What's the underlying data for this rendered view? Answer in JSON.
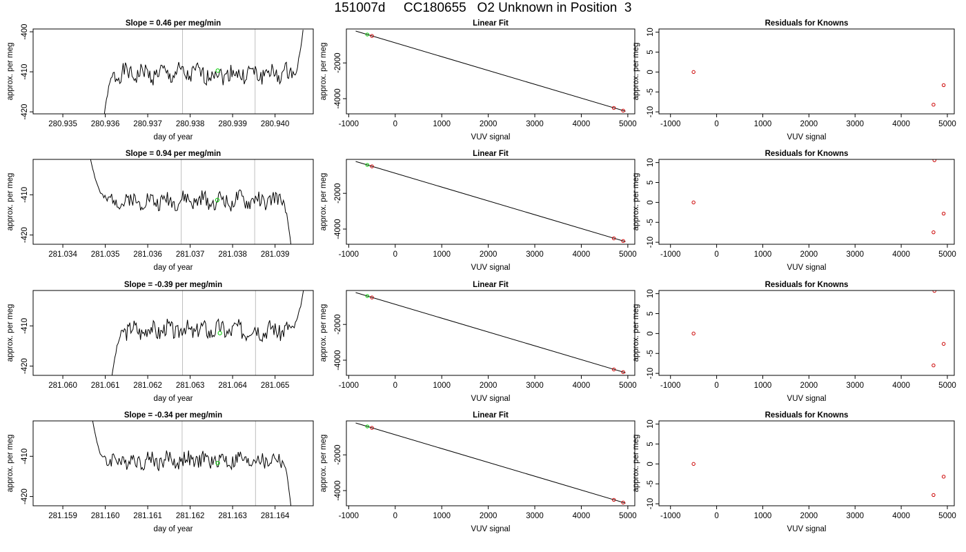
{
  "page": {
    "title": "151007d     CC180655   O2 Unknown in Position  3"
  },
  "colors": {
    "trace": "#000000",
    "marker_green": "#00cc00",
    "marker_red": "#cc0000",
    "vline": "#bebebe",
    "frame": "#000000"
  },
  "chart_data": [
    {
      "type": "line",
      "row": 1,
      "col": 1,
      "title": "Slope =  0.46  per meg/min",
      "xlabel": "day of year",
      "ylabel": "approx. per meg",
      "xlim": [
        280.9343,
        280.9409
      ],
      "ylim": [
        -420.5,
        -399.3
      ],
      "xticks": [
        280.935,
        280.936,
        280.937,
        280.938,
        280.939,
        280.94
      ],
      "xtick_labels": [
        "280.935",
        "280.936",
        "280.937",
        "280.938",
        "280.939",
        "280.940"
      ],
      "yticks": [
        -420,
        -410,
        -400
      ],
      "ytick_labels": [
        "-420",
        "-410",
        "-400"
      ],
      "vlines": [
        280.93782,
        280.93953
      ],
      "trace": {
        "x_start": 280.93595,
        "x_end": 280.94066,
        "y_start": -423,
        "y_end": -399.5,
        "base": -410.5,
        "ramp_frac": 0.06,
        "end_frac": 0.95,
        "amp": 2.6,
        "seed": 1
      },
      "marker": {
        "x": 280.93865,
        "y": -409.7
      }
    },
    {
      "type": "scatter",
      "row": 1,
      "col": 2,
      "title": "Linear Fit",
      "xlabel": "VUV signal",
      "ylabel": "approx. per meg",
      "xlim": [
        -1050,
        5150
      ],
      "ylim": [
        -4850,
        -100
      ],
      "xticks": [
        -1000,
        0,
        1000,
        2000,
        3000,
        4000,
        5000
      ],
      "xtick_labels": [
        "-1000",
        "0",
        "1000",
        "2000",
        "3000",
        "4000",
        "5000"
      ],
      "yticks": [
        -4000,
        -2000
      ],
      "ytick_labels": [
        "-4000",
        "-2000"
      ],
      "fit_line": {
        "x": [
          -850,
          4950
        ],
        "y": [
          -217,
          -4705
        ]
      },
      "points_red": [
        {
          "x": -500,
          "y": -491
        },
        {
          "x": 4700,
          "y": -4520
        },
        {
          "x": 4900,
          "y": -4670
        }
      ],
      "points_green": [
        {
          "x": -600,
          "y": -410
        }
      ]
    },
    {
      "type": "scatter",
      "row": 1,
      "col": 3,
      "title": "Residuals for Knowns",
      "xlabel": "VUV signal",
      "ylabel": "approx. per meg",
      "xlim": [
        -1250,
        5150
      ],
      "ylim": [
        -10.5,
        10.8
      ],
      "xticks": [
        -1000,
        0,
        1000,
        2000,
        3000,
        4000,
        5000
      ],
      "xtick_labels": [
        "-1000",
        "0",
        "1000",
        "2000",
        "3000",
        "4000",
        "5000"
      ],
      "yticks": [
        -10,
        -5,
        0,
        5,
        10
      ],
      "ytick_labels": [
        "-10",
        "-5",
        "0",
        "5",
        "10"
      ],
      "points_red": [
        {
          "x": -500,
          "y": 0
        },
        {
          "x": 4700,
          "y": -8.2
        },
        {
          "x": 4920,
          "y": -3.3
        }
      ]
    },
    {
      "type": "line",
      "row": 2,
      "col": 1,
      "title": "Slope =  0.94  per meg/min",
      "xlabel": "day of year",
      "ylabel": "approx. per meg",
      "xlim": [
        281.0333,
        281.0399
      ],
      "ylim": [
        -422.3,
        -401.2
      ],
      "xticks": [
        281.034,
        281.035,
        281.036,
        281.037,
        281.038,
        281.039
      ],
      "xtick_labels": [
        "281.034",
        "281.035",
        "281.036",
        "281.037",
        "281.038",
        "281.039"
      ],
      "yticks": [
        -420,
        -410
      ],
      "ytick_labels": [
        "-420",
        "-410"
      ],
      "vlines": [
        281.03679,
        281.03852
      ],
      "trace": {
        "x_start": 281.03465,
        "x_end": 281.03938,
        "y_start": -401,
        "y_end": -423,
        "base": -411.5,
        "ramp_frac": 0.09,
        "end_frac": 0.95,
        "amp": 2.4,
        "seed": 2
      },
      "marker": {
        "x": 281.03764,
        "y": -411.3
      }
    },
    {
      "type": "scatter",
      "row": 2,
      "col": 2,
      "title": "Linear Fit",
      "xlabel": "VUV signal",
      "ylabel": "approx. per meg",
      "xlim": [
        -1050,
        5150
      ],
      "ylim": [
        -4850,
        -100
      ],
      "xticks": [
        -1000,
        0,
        1000,
        2000,
        3000,
        4000,
        5000
      ],
      "xtick_labels": [
        "-1000",
        "0",
        "1000",
        "2000",
        "3000",
        "4000",
        "5000"
      ],
      "yticks": [
        -4000,
        -2000
      ],
      "ytick_labels": [
        "-4000",
        "-2000"
      ],
      "fit_line": {
        "x": [
          -850,
          4950
        ],
        "y": [
          -217,
          -4705
        ]
      },
      "points_red": [
        {
          "x": -500,
          "y": -491
        },
        {
          "x": 4700,
          "y": -4520
        },
        {
          "x": 4900,
          "y": -4670
        }
      ],
      "points_green": [
        {
          "x": -600,
          "y": -410
        }
      ]
    },
    {
      "type": "scatter",
      "row": 2,
      "col": 3,
      "title": "Residuals for Knowns",
      "xlabel": "VUV signal",
      "ylabel": "approx. per meg",
      "xlim": [
        -1250,
        5150
      ],
      "ylim": [
        -10.5,
        10.8
      ],
      "xticks": [
        -1000,
        0,
        1000,
        2000,
        3000,
        4000,
        5000
      ],
      "xtick_labels": [
        "-1000",
        "0",
        "1000",
        "2000",
        "3000",
        "4000",
        "5000"
      ],
      "yticks": [
        -10,
        -5,
        0,
        5,
        10
      ],
      "ytick_labels": [
        "-10",
        "-5",
        "0",
        "5",
        "10"
      ],
      "points_red": [
        {
          "x": -500,
          "y": 0
        },
        {
          "x": 4700,
          "y": -7.5
        },
        {
          "x": 4720,
          "y": 10.6
        },
        {
          "x": 4920,
          "y": -2.8
        }
      ]
    },
    {
      "type": "line",
      "row": 3,
      "col": 1,
      "title": "Slope =  -0.39  per meg/min",
      "xlabel": "day of year",
      "ylabel": "approx. per meg",
      "xlim": [
        281.0593,
        281.0659
      ],
      "ylim": [
        -422.3,
        -401.2
      ],
      "xticks": [
        281.06,
        281.061,
        281.062,
        281.063,
        281.064,
        281.065
      ],
      "xtick_labels": [
        "281.060",
        "281.061",
        "281.062",
        "281.063",
        "281.064",
        "281.065"
      ],
      "yticks": [
        -420,
        -410
      ],
      "ytick_labels": [
        "-420",
        "-410"
      ],
      "vlines": [
        281.06282,
        281.06454
      ],
      "trace": {
        "x_start": 281.06115,
        "x_end": 281.06568,
        "y_start": -423,
        "y_end": -400.5,
        "base": -411,
        "ramp_frac": 0.07,
        "end_frac": 0.93,
        "amp": 2.6,
        "seed": 3
      },
      "marker": {
        "x": 281.0637,
        "y": -411.8
      }
    },
    {
      "type": "scatter",
      "row": 3,
      "col": 2,
      "title": "Linear Fit",
      "xlabel": "VUV signal",
      "ylabel": "approx. per meg",
      "xlim": [
        -1050,
        5150
      ],
      "ylim": [
        -4850,
        -100
      ],
      "xticks": [
        -1000,
        0,
        1000,
        2000,
        3000,
        4000,
        5000
      ],
      "xtick_labels": [
        "-1000",
        "0",
        "1000",
        "2000",
        "3000",
        "4000",
        "5000"
      ],
      "yticks": [
        -4000,
        -2000
      ],
      "ytick_labels": [
        "-4000",
        "-2000"
      ],
      "fit_line": {
        "x": [
          -850,
          4950
        ],
        "y": [
          -217,
          -4705
        ]
      },
      "points_red": [
        {
          "x": -500,
          "y": -491
        },
        {
          "x": 4700,
          "y": -4520
        },
        {
          "x": 4900,
          "y": -4670
        }
      ],
      "points_green": [
        {
          "x": -600,
          "y": -410
        }
      ]
    },
    {
      "type": "scatter",
      "row": 3,
      "col": 3,
      "title": "Residuals for Knowns",
      "xlabel": "VUV signal",
      "ylabel": "approx. per meg",
      "xlim": [
        -1250,
        5150
      ],
      "ylim": [
        -10.5,
        10.8
      ],
      "xticks": [
        -1000,
        0,
        1000,
        2000,
        3000,
        4000,
        5000
      ],
      "xtick_labels": [
        "-1000",
        "0",
        "1000",
        "2000",
        "3000",
        "4000",
        "5000"
      ],
      "yticks": [
        -10,
        -5,
        0,
        5,
        10
      ],
      "ytick_labels": [
        "-10",
        "-5",
        "0",
        "5",
        "10"
      ],
      "points_red": [
        {
          "x": -500,
          "y": 0
        },
        {
          "x": 4700,
          "y": -8.0
        },
        {
          "x": 4720,
          "y": 10.7
        },
        {
          "x": 4920,
          "y": -2.6
        }
      ]
    },
    {
      "type": "line",
      "row": 4,
      "col": 1,
      "title": "Slope =  -0.34  per meg/min",
      "xlabel": "day of year",
      "ylabel": "approx. per meg",
      "xlim": [
        281.1583,
        281.1649
      ],
      "ylim": [
        -422.3,
        -401.2
      ],
      "xticks": [
        281.159,
        281.16,
        281.161,
        281.162,
        281.163,
        281.164
      ],
      "xtick_labels": [
        "281.159",
        "281.160",
        "281.161",
        "281.162",
        "281.163",
        "281.164"
      ],
      "yticks": [
        -420,
        -410
      ],
      "ytick_labels": [
        "-420",
        "-410"
      ],
      "vlines": [
        281.16181,
        281.16354
      ],
      "trace": {
        "x_start": 281.1597,
        "x_end": 281.16438,
        "y_start": -401,
        "y_end": -423,
        "base": -411,
        "ramp_frac": 0.07,
        "end_frac": 0.95,
        "amp": 2.4,
        "seed": 4
      },
      "marker": {
        "x": 281.16265,
        "y": -411.7
      }
    },
    {
      "type": "scatter",
      "row": 4,
      "col": 2,
      "title": "Linear Fit",
      "xlabel": "VUV signal",
      "ylabel": "approx. per meg",
      "xlim": [
        -1050,
        5150
      ],
      "ylim": [
        -4850,
        -100
      ],
      "xticks": [
        -1000,
        0,
        1000,
        2000,
        3000,
        4000,
        5000
      ],
      "xtick_labels": [
        "-1000",
        "0",
        "1000",
        "2000",
        "3000",
        "4000",
        "5000"
      ],
      "yticks": [
        -4000,
        -2000
      ],
      "ytick_labels": [
        "-4000",
        "-2000"
      ],
      "fit_line": {
        "x": [
          -850,
          4950
        ],
        "y": [
          -217,
          -4705
        ]
      },
      "points_red": [
        {
          "x": -500,
          "y": -491
        },
        {
          "x": 4700,
          "y": -4520
        },
        {
          "x": 4900,
          "y": -4670
        }
      ],
      "points_green": [
        {
          "x": -600,
          "y": -410
        }
      ]
    },
    {
      "type": "scatter",
      "row": 4,
      "col": 3,
      "title": "Residuals for Knowns",
      "xlabel": "VUV signal",
      "ylabel": "approx. per meg",
      "xlim": [
        -1250,
        5150
      ],
      "ylim": [
        -10.5,
        10.8
      ],
      "xticks": [
        -1000,
        0,
        1000,
        2000,
        3000,
        4000,
        5000
      ],
      "xtick_labels": [
        "-1000",
        "0",
        "1000",
        "2000",
        "3000",
        "4000",
        "5000"
      ],
      "yticks": [
        -10,
        -5,
        0,
        5,
        10
      ],
      "ytick_labels": [
        "-10",
        "-5",
        "0",
        "5",
        "10"
      ],
      "points_red": [
        {
          "x": -500,
          "y": 0
        },
        {
          "x": 4700,
          "y": -7.8
        },
        {
          "x": 4920,
          "y": -3.2
        }
      ]
    }
  ]
}
